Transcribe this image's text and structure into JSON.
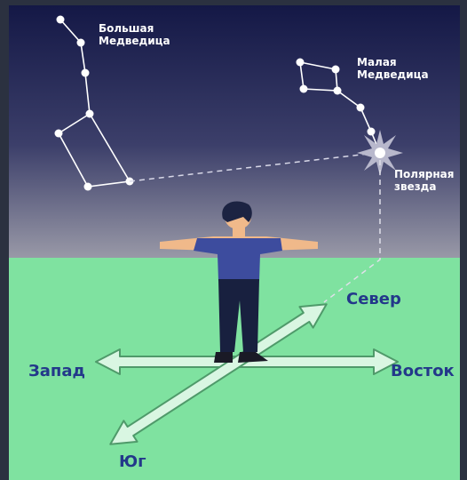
{
  "constellations": [
    {
      "label": [
        "Большая",
        "Медведица"
      ]
    },
    {
      "label": [
        "Малая",
        "Медведица"
      ]
    }
  ],
  "star": {
    "label": [
      "Полярная",
      "звезда"
    ]
  },
  "directions": {
    "north": "Север",
    "west": "Запад",
    "east": "Восток",
    "south": "Юг"
  }
}
